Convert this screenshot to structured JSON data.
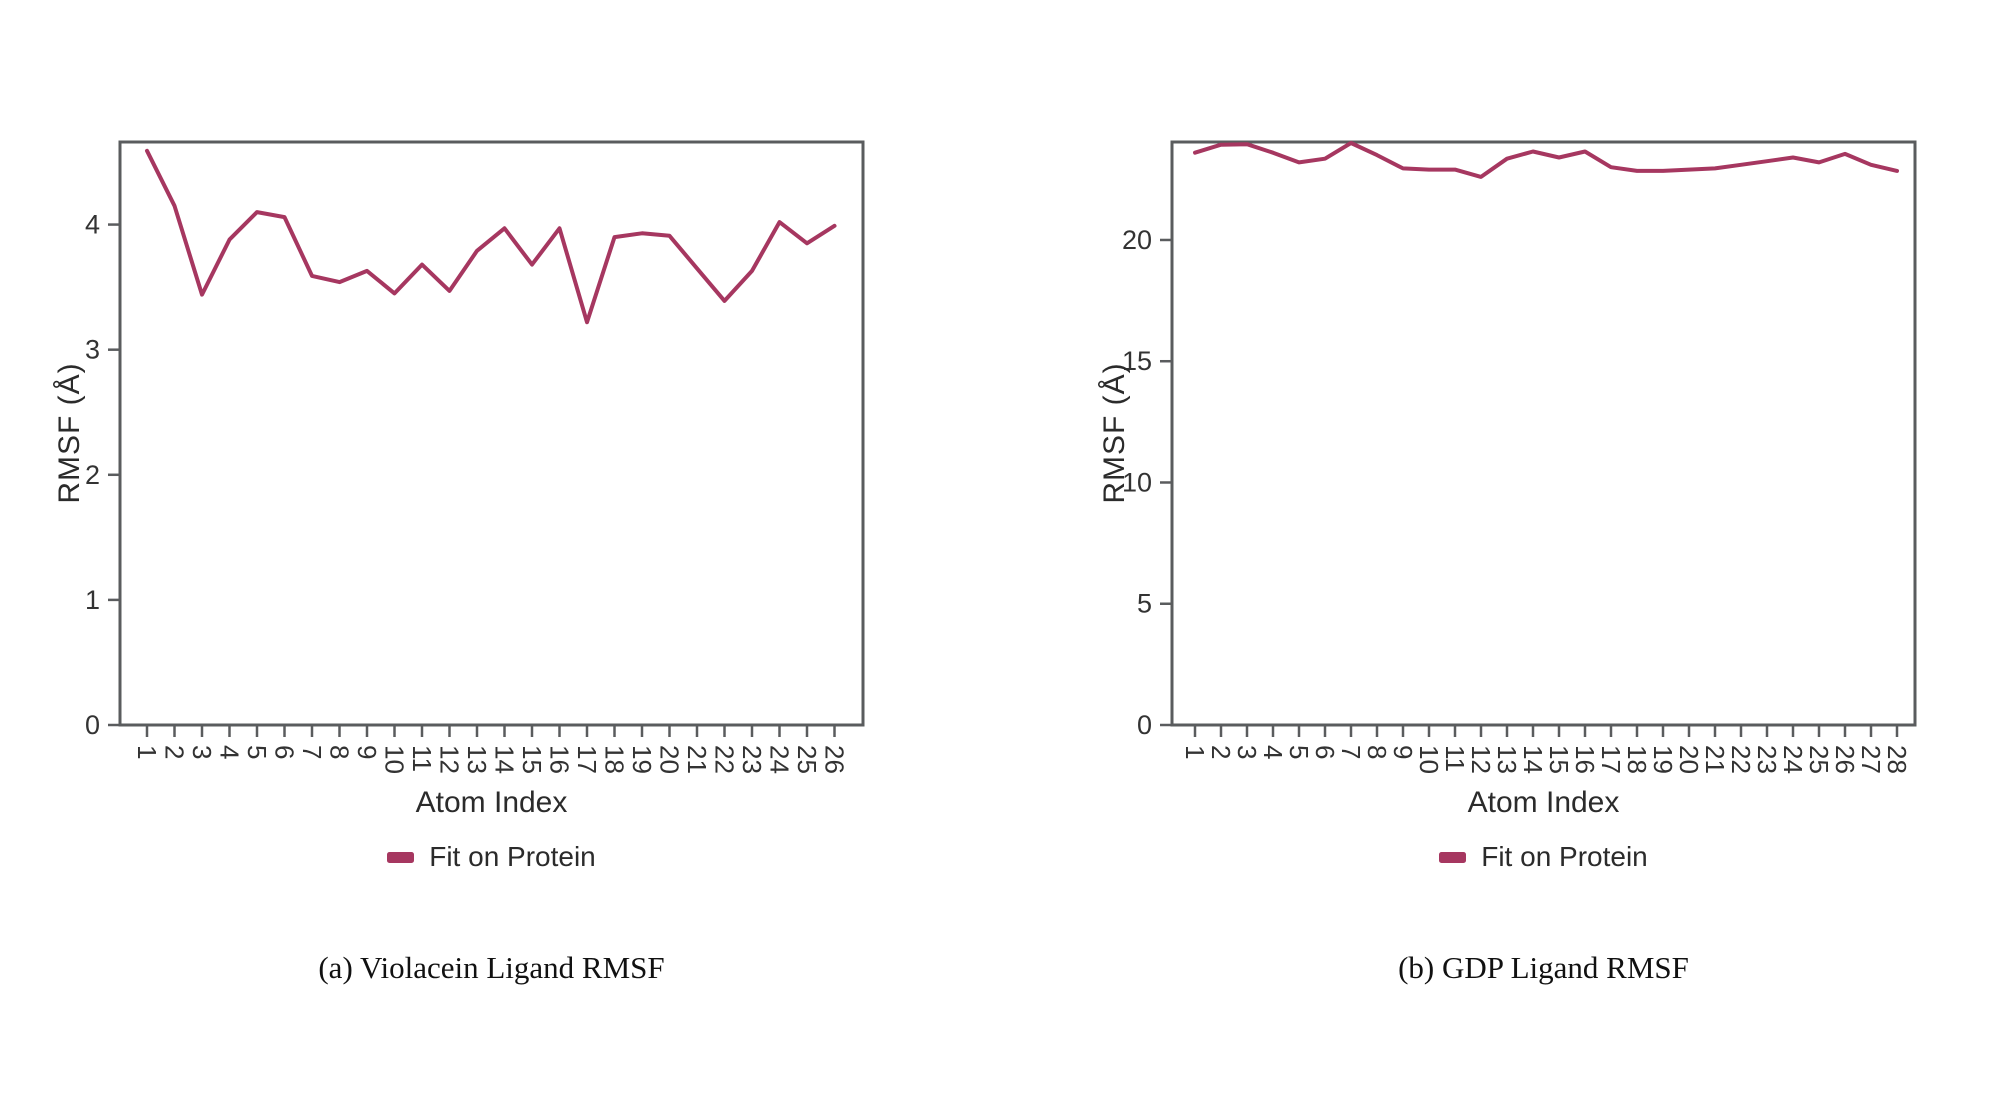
{
  "page": {
    "background": "#ffffff"
  },
  "styles": {
    "line_color": "#a63760",
    "axis_color": "#5a5c5e",
    "tick_text_color": "#333333",
    "label_text_color": "#2b2b2b",
    "caption_color": "#111111"
  },
  "chart_data": [
    {
      "type": "line",
      "panel": "a",
      "caption": "(a) Violacein Ligand RMSF",
      "xlabel": "Atom Index",
      "ylabel": "RMSF (Å)",
      "legend": [
        "Fit on Protein"
      ],
      "legend_position": "below-plot-centered",
      "grid": false,
      "xtick_rotation": 90,
      "x": [
        1,
        2,
        3,
        4,
        5,
        6,
        7,
        8,
        9,
        10,
        11,
        12,
        13,
        14,
        15,
        16,
        17,
        18,
        19,
        20,
        21,
        22,
        23,
        24,
        25,
        26
      ],
      "series": [
        {
          "name": "Fit on Protein",
          "values": [
            4.59,
            4.15,
            3.44,
            3.88,
            4.1,
            4.06,
            3.59,
            3.54,
            3.63,
            3.45,
            3.68,
            3.47,
            3.79,
            3.97,
            3.68,
            3.97,
            3.22,
            3.9,
            3.93,
            3.91,
            3.65,
            3.39,
            3.63,
            4.02,
            3.85,
            3.99
          ]
        }
      ],
      "ylim": [
        0,
        4.66
      ],
      "yticks": [
        0,
        1,
        2,
        3,
        4
      ]
    },
    {
      "type": "line",
      "panel": "b",
      "caption": "(b) GDP Ligand RMSF",
      "xlabel": "Atom Index",
      "ylabel": "RMSF (Å)",
      "legend": [
        "Fit on Protein"
      ],
      "legend_position": "below-plot-centered",
      "grid": false,
      "xtick_rotation": 90,
      "x": [
        1,
        2,
        3,
        4,
        5,
        6,
        7,
        8,
        9,
        10,
        11,
        12,
        13,
        14,
        15,
        16,
        17,
        18,
        19,
        20,
        21,
        22,
        23,
        24,
        25,
        26,
        27,
        28
      ],
      "series": [
        {
          "name": "Fit on Protein",
          "values": [
            23.6,
            23.93,
            23.95,
            23.6,
            23.2,
            23.35,
            24.0,
            23.5,
            22.95,
            22.9,
            22.9,
            22.6,
            23.35,
            23.65,
            23.4,
            23.65,
            23.0,
            22.85,
            22.85,
            22.9,
            22.95,
            23.1,
            23.25,
            23.4,
            23.2,
            23.55,
            23.1,
            22.85
          ]
        }
      ],
      "ylim": [
        0,
        24.04
      ],
      "yticks": [
        0,
        5,
        10,
        15,
        20
      ]
    }
  ]
}
